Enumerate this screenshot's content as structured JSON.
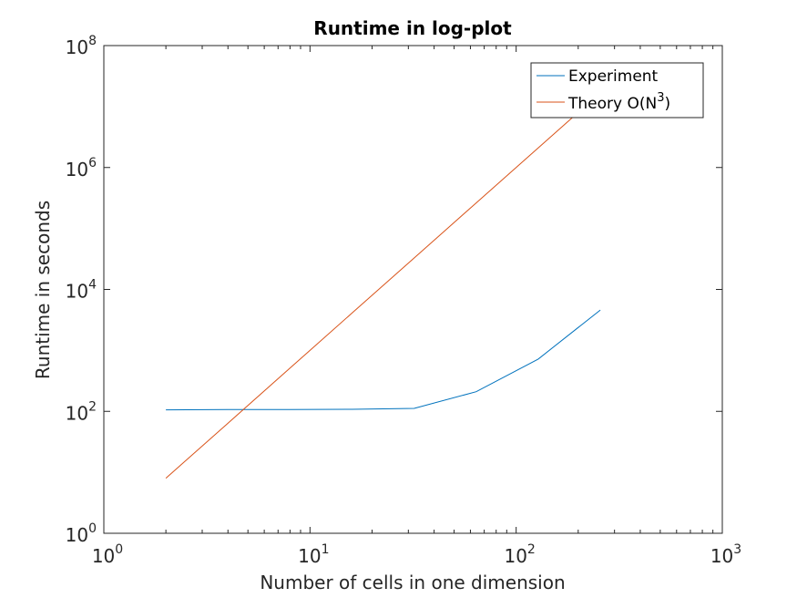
{
  "chart_data": {
    "type": "line",
    "title": "Runtime in log-plot",
    "xlabel": "Number of cells in one dimension",
    "ylabel": "Runtime in seconds",
    "xscale": "log",
    "yscale": "log",
    "xlim": [
      1,
      1000
    ],
    "ylim": [
      1,
      100000000
    ],
    "grid": false,
    "legend_position": "top-right",
    "x_ticks": [
      {
        "base": "10",
        "exp": "0",
        "value": 1
      },
      {
        "base": "10",
        "exp": "1",
        "value": 10
      },
      {
        "base": "10",
        "exp": "2",
        "value": 100
      },
      {
        "base": "10",
        "exp": "3",
        "value": 1000
      }
    ],
    "y_ticks": [
      {
        "base": "10",
        "exp": "0",
        "value": 1
      },
      {
        "base": "10",
        "exp": "2",
        "value": 100
      },
      {
        "base": "10",
        "exp": "4",
        "value": 10000
      },
      {
        "base": "10",
        "exp": "6",
        "value": 1000000
      },
      {
        "base": "10",
        "exp": "8",
        "value": 100000000
      }
    ],
    "series": [
      {
        "name": "Experiment",
        "color": "#0072BD",
        "x": [
          2,
          4,
          8,
          16,
          32,
          64,
          128,
          256
        ],
        "y": [
          106,
          107,
          107,
          108,
          112,
          210,
          720,
          4600
        ]
      },
      {
        "name_prefix": "Theory O(N",
        "name_sup": "3",
        "name_suffix": ")",
        "color": "#D95319",
        "x": [
          2,
          4,
          8,
          16,
          32,
          64,
          128,
          256
        ],
        "y": [
          8,
          64,
          512,
          4096,
          32768,
          262144,
          2097152,
          16777216
        ]
      }
    ]
  }
}
